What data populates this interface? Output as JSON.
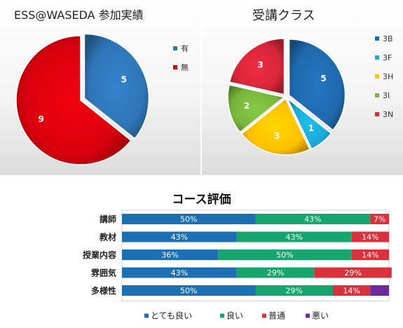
{
  "chart_data": [
    {
      "type": "pie",
      "title": "ESS@WASEDA 参加実績",
      "categories": [
        "有",
        "無"
      ],
      "values": [
        5,
        9
      ],
      "colors": [
        "#2e75b6",
        "#d9000d"
      ],
      "data_labels": [
        "5",
        "9"
      ],
      "legend": "right"
    },
    {
      "type": "pie",
      "title": "受講クラス",
      "categories": [
        "3B",
        "3F",
        "3H",
        "3I",
        "3N"
      ],
      "values": [
        5,
        1,
        3,
        2,
        3
      ],
      "colors": [
        "#1f69ad",
        "#1aaad6",
        "#ffc000",
        "#77b53c",
        "#d7263a"
      ],
      "data_labels": [
        "5",
        "1",
        "3",
        "2",
        "3"
      ],
      "legend": "right"
    },
    {
      "type": "bar",
      "stacked": true,
      "orientation": "horizontal",
      "title": "コース評価",
      "categories": [
        "講師",
        "教材",
        "授業内容",
        "雰囲気",
        "多様性"
      ],
      "series": [
        {
          "name": "とても良い",
          "values": [
            50,
            43,
            36,
            43,
            50
          ],
          "labels": [
            "50%",
            "43%",
            "36%",
            "43%",
            "50%"
          ],
          "color": "#1c6fb3"
        },
        {
          "name": "良い",
          "values": [
            43,
            43,
            50,
            29,
            29
          ],
          "labels": [
            "43%",
            "43%",
            "50%",
            "29%",
            "29%"
          ],
          "color": "#16a56c"
        },
        {
          "name": "普通",
          "values": [
            7,
            14,
            14,
            29,
            14
          ],
          "labels": [
            "7%",
            "14%",
            "14%",
            "29%",
            "14%"
          ],
          "color": "#d9323c"
        },
        {
          "name": "悪い",
          "values": [
            0,
            0,
            0,
            0,
            7
          ],
          "labels": [
            "",
            "",
            "",
            "",
            ""
          ],
          "color": "#6b2b9e"
        }
      ],
      "xlim": [
        0,
        100
      ],
      "legend": "bottom"
    }
  ]
}
